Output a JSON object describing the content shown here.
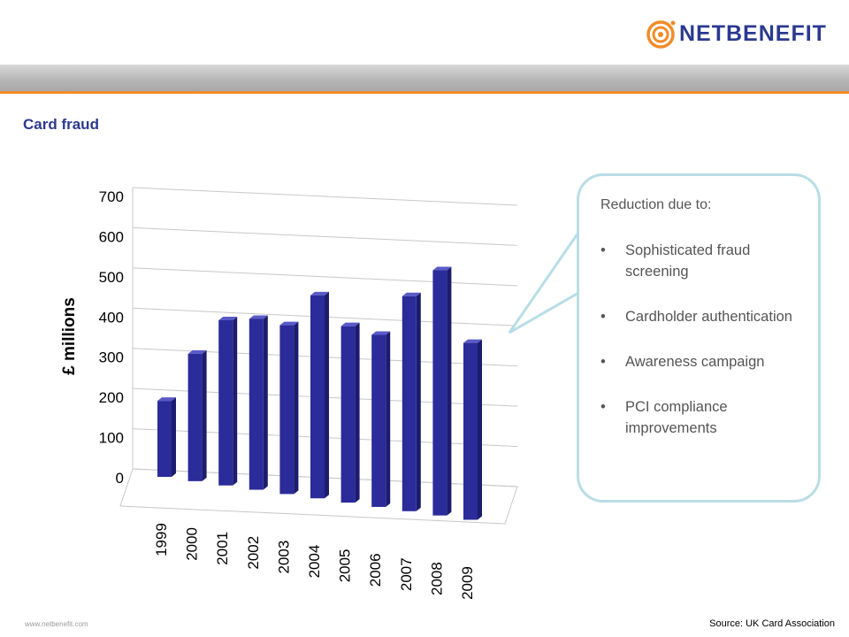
{
  "header": {
    "logo_text": "NETBENEFIT",
    "logo_icon": "netbenefit-spiral-icon",
    "title": "Card fraud"
  },
  "colors": {
    "brand_blue": "#2b3990",
    "accent_orange": "#f28c28",
    "bar_fill": "#2b2b9a",
    "callout_border": "#b9dde6"
  },
  "callout": {
    "heading": "Reduction due to:",
    "items": [
      "Sophisticated fraud screening",
      "Cardholder authentication",
      "Awareness campaign",
      "PCI compliance improvements"
    ]
  },
  "footer": {
    "url": "www.netbenefit.com",
    "source": "Source: UK Card Association"
  },
  "chart_data": {
    "type": "bar",
    "style": "3d-column",
    "categories": [
      "1999",
      "2000",
      "2001",
      "2002",
      "2003",
      "2004",
      "2005",
      "2006",
      "2007",
      "2008",
      "2009"
    ],
    "values": [
      189,
      317,
      411,
      425,
      420,
      505,
      439,
      428,
      535,
      610,
      440
    ],
    "ylabel": "£ millions",
    "xlabel": "",
    "ylim": [
      0,
      700
    ],
    "yticks": [
      0,
      100,
      200,
      300,
      400,
      500,
      600,
      700
    ],
    "grid": true,
    "legend": "none"
  }
}
